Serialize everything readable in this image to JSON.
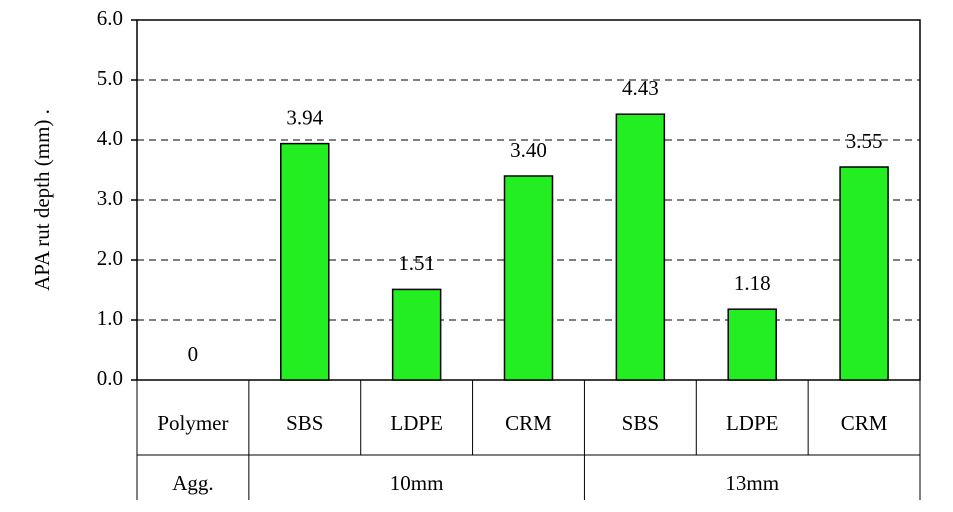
{
  "chart_data": {
    "type": "bar",
    "y_label": "APA rut depth (mm) .",
    "categories": [
      "Polymer",
      "SBS",
      "LDPE",
      "CRM",
      "SBS",
      "LDPE",
      "CRM"
    ],
    "values": [
      0,
      3.94,
      1.51,
      3.4,
      4.43,
      1.18,
      3.55
    ],
    "value_labels": [
      "0",
      "3.94",
      "1.51",
      "3.40",
      "4.43",
      "1.18",
      "3.55"
    ],
    "row_header": "Agg.",
    "groups": [
      "10mm",
      "13mm"
    ],
    "color": "#22ee22",
    "ylim": [
      0,
      6
    ],
    "yticks": [
      {
        "value": 0,
        "label": "0.0"
      },
      {
        "value": 1,
        "label": "1.0"
      },
      {
        "value": 2,
        "label": "2.0"
      },
      {
        "value": 3,
        "label": "3.0"
      },
      {
        "value": 4,
        "label": "4.0"
      },
      {
        "value": 5,
        "label": "5.0"
      },
      {
        "value": 6,
        "label": "6.0"
      }
    ],
    "grid": true
  }
}
